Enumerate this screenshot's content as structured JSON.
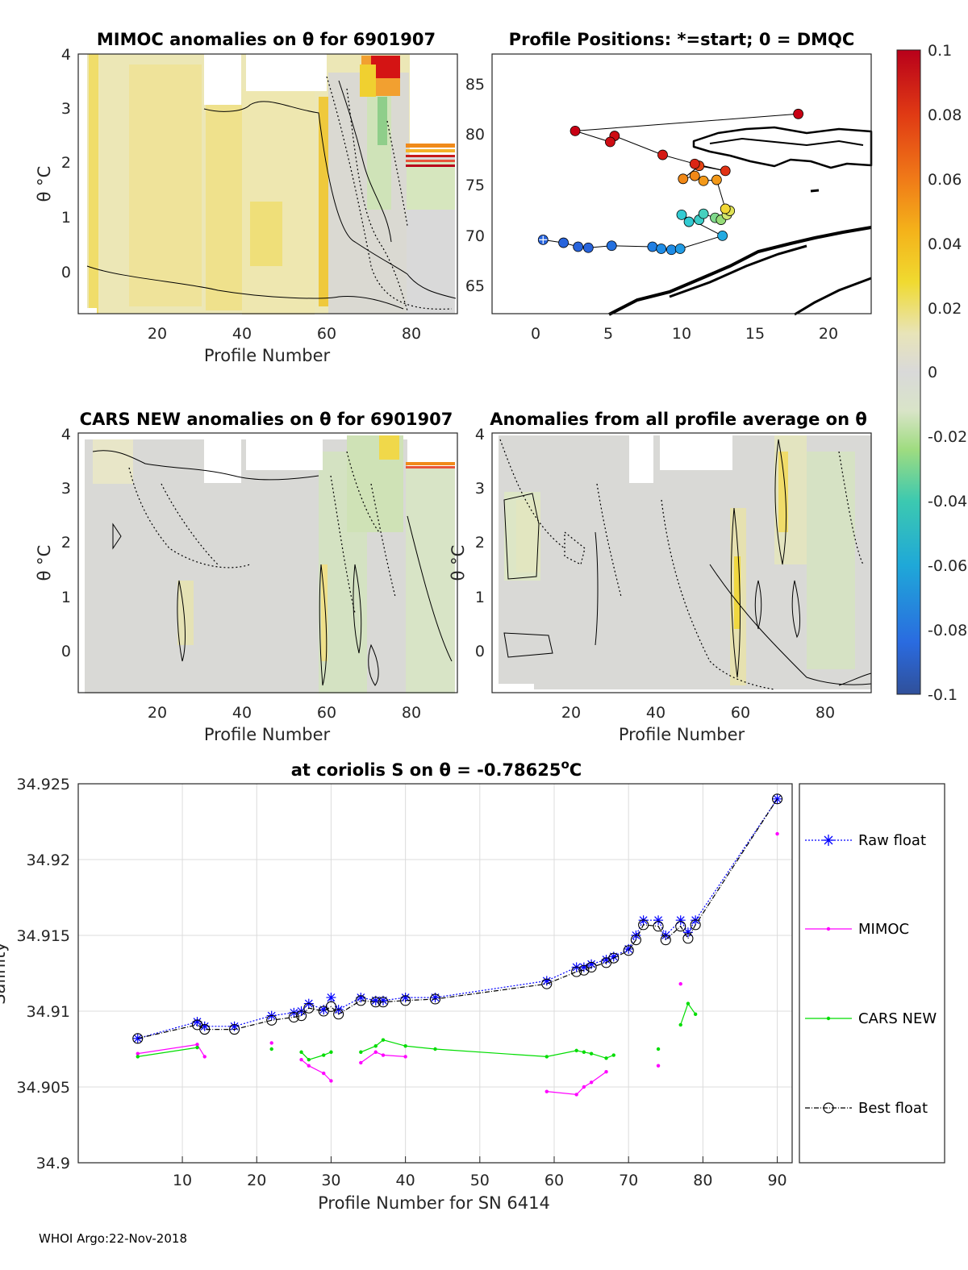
{
  "footer": "WHOI Argo:22-Nov-2018",
  "colorbar": {
    "ticks": [
      "0.1",
      "0.08",
      "0.06",
      "0.04",
      "0.02",
      "0",
      "-0.02",
      "-0.04",
      "-0.06",
      "-0.08",
      "-0.1"
    ],
    "range": [
      -0.1,
      0.1
    ]
  },
  "panels": {
    "mimoc": {
      "title": "MIMOC anomalies on θ  for 6901907",
      "ylabel": "θ °C",
      "xlabel": "Profile Number",
      "xticks": [
        "20",
        "40",
        "60",
        "80"
      ],
      "yticks": [
        "4",
        "3",
        "2",
        "1",
        "0"
      ]
    },
    "positions": {
      "title": "Profile Positions: *=start; 0 = DMQC",
      "xticks": [
        "0",
        "5",
        "10",
        "15",
        "20"
      ],
      "yticks": [
        "85",
        "80",
        "75",
        "70",
        "65"
      ]
    },
    "cars": {
      "title": "CARS NEW anomalies on θ for 6901907",
      "ylabel": "θ °C",
      "xlabel": "Profile Number",
      "xticks": [
        "20",
        "40",
        "60",
        "80"
      ],
      "yticks": [
        "4",
        "3",
        "2",
        "1",
        "0"
      ]
    },
    "average": {
      "title": "Anomalies from all profile average on θ",
      "ylabel": "θ °C",
      "xlabel": "Profile Number",
      "xticks": [
        "20",
        "40",
        "60",
        "80"
      ],
      "yticks": [
        "4",
        "3",
        "2",
        "1",
        "0"
      ]
    }
  },
  "chart_data": [
    {
      "type": "scatter",
      "title": "Profile Positions: *=start; 0 = DMQC",
      "xlim": [
        -3,
        23
      ],
      "ylim": [
        62,
        88
      ],
      "points": [
        {
          "lon": 0.5,
          "lat": 69.4,
          "c": -0.085,
          "start": true
        },
        {
          "lon": 1.9,
          "lat": 69.1,
          "c": -0.085
        },
        {
          "lon": 2.9,
          "lat": 68.7,
          "c": -0.085
        },
        {
          "lon": 3.6,
          "lat": 68.6,
          "c": -0.085
        },
        {
          "lon": 5.2,
          "lat": 68.8,
          "c": -0.08
        },
        {
          "lon": 8.0,
          "lat": 68.7,
          "c": -0.075
        },
        {
          "lon": 8.6,
          "lat": 68.5,
          "c": -0.07
        },
        {
          "lon": 9.3,
          "lat": 68.4,
          "c": -0.07
        },
        {
          "lon": 9.9,
          "lat": 68.5,
          "c": -0.065
        },
        {
          "lon": 12.8,
          "lat": 69.8,
          "c": -0.06
        },
        {
          "lon": 10.0,
          "lat": 71.9,
          "c": -0.045
        },
        {
          "lon": 10.5,
          "lat": 71.2,
          "c": -0.045
        },
        {
          "lon": 11.2,
          "lat": 71.4,
          "c": -0.04
        },
        {
          "lon": 11.5,
          "lat": 72.0,
          "c": -0.035
        },
        {
          "lon": 12.3,
          "lat": 71.6,
          "c": -0.02
        },
        {
          "lon": 12.7,
          "lat": 71.4,
          "c": -0.015
        },
        {
          "lon": 13.1,
          "lat": 71.9,
          "c": 0.0
        },
        {
          "lon": 13.3,
          "lat": 72.3,
          "c": 0.01
        },
        {
          "lon": 13.0,
          "lat": 72.5,
          "c": 0.025
        },
        {
          "lon": 12.4,
          "lat": 75.4,
          "c": 0.05
        },
        {
          "lon": 11.5,
          "lat": 75.3,
          "c": 0.05
        },
        {
          "lon": 10.9,
          "lat": 75.8,
          "c": 0.055
        },
        {
          "lon": 10.1,
          "lat": 75.5,
          "c": 0.055
        },
        {
          "lon": 11.2,
          "lat": 76.8,
          "c": 0.075
        },
        {
          "lon": 13.0,
          "lat": 76.3,
          "c": 0.08
        },
        {
          "lon": 10.9,
          "lat": 77.0,
          "c": 0.085
        },
        {
          "lon": 8.7,
          "lat": 77.9,
          "c": 0.09
        },
        {
          "lon": 5.4,
          "lat": 79.8,
          "c": 0.095
        },
        {
          "lon": 5.1,
          "lat": 79.2,
          "c": 0.095
        },
        {
          "lon": 2.7,
          "lat": 80.3,
          "c": 0.1
        },
        {
          "lon": 18.0,
          "lat": 82.0,
          "c": 0.1
        }
      ]
    },
    {
      "type": "line",
      "title": "at coriolis S on θ = -0.78625°C",
      "title_prefix": "at coriolis S on θ = -0.78625",
      "title_sup": "o",
      "title_suffix": "C",
      "xlabel": "Profile Number for SN 6414",
      "ylabel": "Salinity",
      "xlim": [
        -4,
        92
      ],
      "ylim": [
        34.9,
        34.925
      ],
      "xticks": [
        "10",
        "20",
        "30",
        "40",
        "50",
        "60",
        "70",
        "80",
        "90"
      ],
      "yticks": [
        "34.925",
        "34.92",
        "34.915",
        "34.91",
        "34.905",
        "34.9"
      ],
      "legend": [
        "Raw float",
        "MIMOC",
        "CARS NEW",
        "Best float"
      ],
      "series": [
        {
          "name": "Raw float",
          "color": "#0000ff",
          "x": [
            4,
            12,
            13,
            17,
            22,
            25,
            26,
            27,
            29,
            30,
            31,
            34,
            36,
            37,
            40,
            44,
            59,
            63,
            64,
            65,
            67,
            68,
            70,
            71,
            72,
            74,
            75,
            77,
            78,
            79,
            90
          ],
          "y": [
            34.9082,
            34.9093,
            34.909,
            34.909,
            34.9097,
            34.9099,
            34.91,
            34.9105,
            34.9101,
            34.9109,
            34.9101,
            34.9109,
            34.9107,
            34.9107,
            34.9109,
            34.9109,
            34.912,
            34.9129,
            34.9129,
            34.9131,
            34.9134,
            34.9136,
            34.9141,
            34.915,
            34.916,
            34.916,
            34.915,
            34.916,
            34.9152,
            34.916,
            34.924
          ]
        },
        {
          "name": "Best float",
          "color": "#000000",
          "x": [
            4,
            12,
            13,
            17,
            22,
            25,
            26,
            27,
            29,
            30,
            31,
            34,
            36,
            37,
            40,
            44,
            59,
            63,
            64,
            65,
            67,
            68,
            70,
            71,
            72,
            74,
            75,
            77,
            78,
            79,
            90
          ],
          "y": [
            34.9082,
            34.9091,
            34.9088,
            34.9088,
            34.9094,
            34.9096,
            34.9097,
            34.9102,
            34.91,
            34.9103,
            34.9098,
            34.9107,
            34.9106,
            34.9106,
            34.9107,
            34.9108,
            34.9118,
            34.9126,
            34.9127,
            34.9129,
            34.9132,
            34.9135,
            34.914,
            34.9147,
            34.9157,
            34.9156,
            34.9147,
            34.9156,
            34.9148,
            34.9157,
            34.924
          ]
        },
        {
          "name": "MIMOC",
          "color": "#ff00ff",
          "segments": [
            {
              "x": [
                4,
                12,
                13
              ],
              "y": [
                34.9072,
                34.9078,
                34.907
              ]
            },
            {
              "x": [
                22
              ],
              "y": [
                34.9079
              ]
            },
            {
              "x": [
                26,
                27,
                29,
                30
              ],
              "y": [
                34.9068,
                34.9064,
                34.9059,
                34.9054
              ]
            },
            {
              "x": [
                34,
                36,
                37,
                40
              ],
              "y": [
                34.9066,
                34.9073,
                34.9071,
                34.907
              ]
            },
            {
              "x": [
                59,
                63,
                64,
                65,
                67
              ],
              "y": [
                34.9047,
                34.9045,
                34.905,
                34.9053,
                34.906
              ]
            },
            {
              "x": [
                74
              ],
              "y": [
                34.9064
              ]
            },
            {
              "x": [
                77
              ],
              "y": [
                34.9118
              ]
            },
            {
              "x": [
                90
              ],
              "y": [
                34.9217
              ]
            }
          ]
        },
        {
          "name": "CARS NEW",
          "color": "#00dd00",
          "segments": [
            {
              "x": [
                4,
                12
              ],
              "y": [
                34.907,
                34.9076
              ]
            },
            {
              "x": [
                22
              ],
              "y": [
                34.9075
              ]
            },
            {
              "x": [
                26,
                27,
                29,
                30
              ],
              "y": [
                34.9073,
                34.9068,
                34.9071,
                34.9073
              ]
            },
            {
              "x": [
                34,
                36,
                37,
                40,
                44,
                59,
                63,
                64,
                65,
                67,
                68
              ],
              "y": [
                34.9073,
                34.9077,
                34.9081,
                34.9077,
                34.9075,
                34.907,
                34.9074,
                34.9073,
                34.9072,
                34.9069,
                34.9071
              ]
            },
            {
              "x": [
                74
              ],
              "y": [
                34.9075
              ]
            },
            {
              "x": [
                77,
                78,
                79
              ],
              "y": [
                34.9091,
                34.9105,
                34.9098
              ]
            }
          ]
        }
      ]
    }
  ]
}
